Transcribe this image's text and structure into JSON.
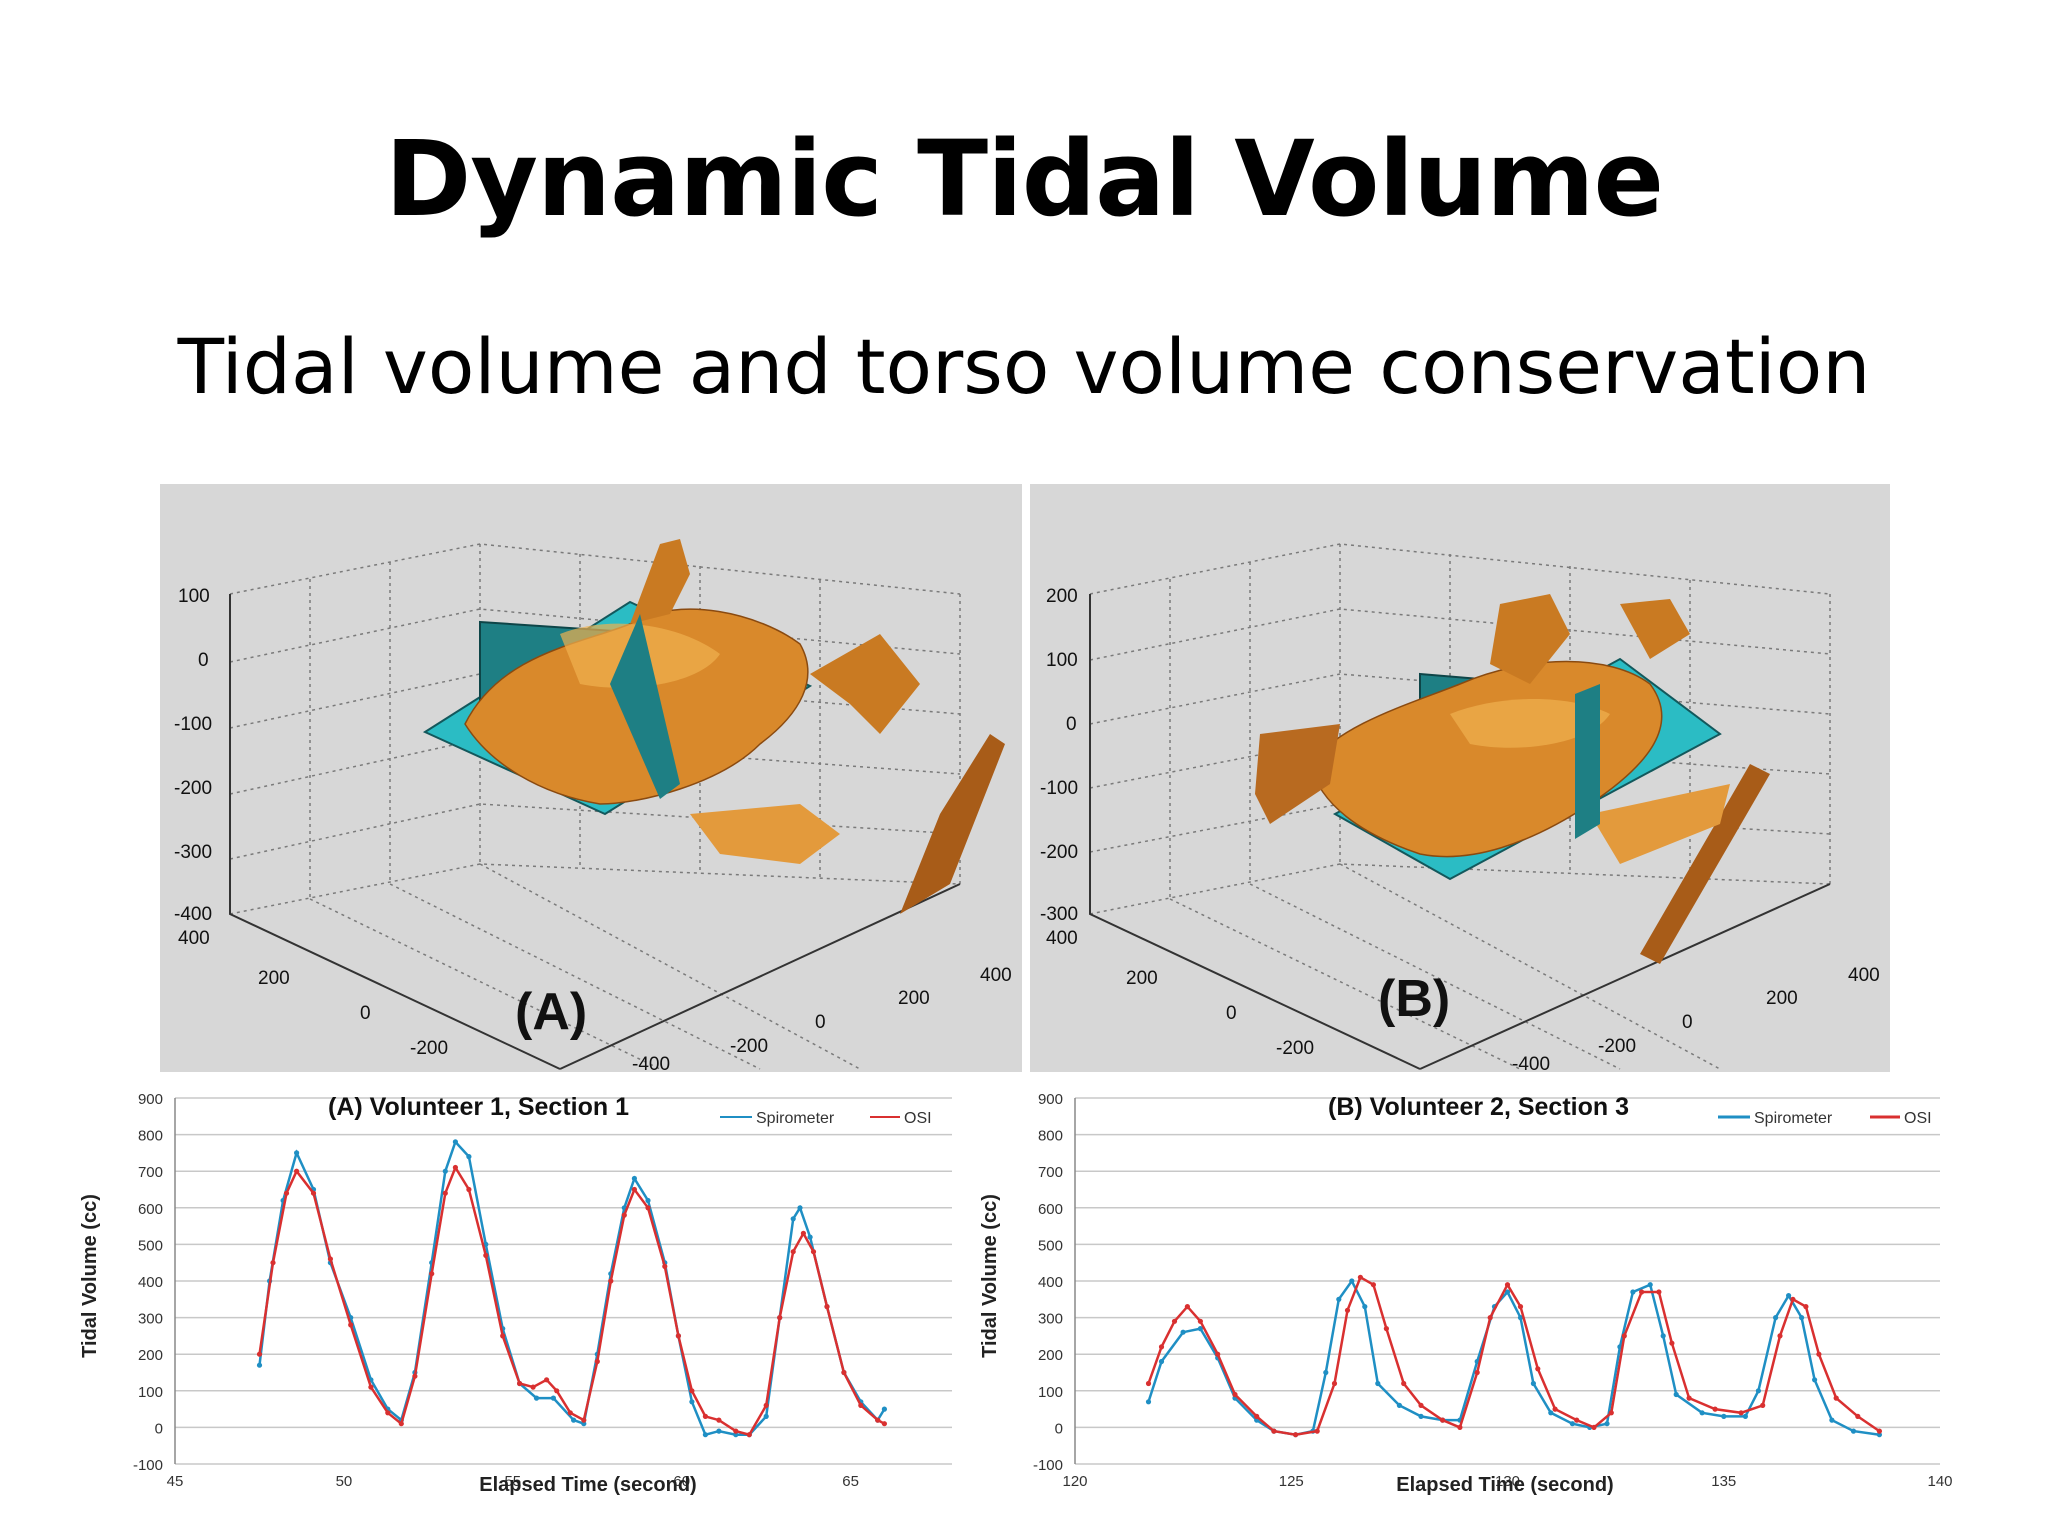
{
  "slide": {
    "title": "Dynamic Tidal Volume",
    "subtitle": "Tidal volume and torso volume conservation"
  },
  "panels_3d": [
    {
      "label": "(A)",
      "z_ticks": [
        "100",
        "0",
        "-100",
        "-200",
        "-300",
        "-400"
      ],
      "y_ticks": [
        "400",
        "200",
        "0",
        "-200"
      ],
      "x_ticks": [
        "-400",
        "-200",
        "0",
        "200",
        "400"
      ],
      "surface_color": "#d9892b",
      "plane_color": "#2bbcc4"
    },
    {
      "label": "(B)",
      "z_ticks": [
        "200",
        "100",
        "0",
        "-100",
        "-200",
        "-300"
      ],
      "y_ticks": [
        "400",
        "200",
        "0",
        "-200"
      ],
      "x_ticks": [
        "-400",
        "-200",
        "0",
        "200",
        "400"
      ],
      "surface_color": "#d9892b",
      "plane_color": "#2bbcc4"
    }
  ],
  "chart_data": [
    {
      "type": "line",
      "title": "(A)   Volunteer 1, Section 1",
      "xlabel": "Elapsed Time (second)",
      "ylabel": "Tidal Volume (cc)",
      "xlim": [
        45,
        68
      ],
      "ylim": [
        -100,
        900
      ],
      "x_ticks": [
        "45",
        "50",
        "55",
        "60",
        "65"
      ],
      "y_ticks": [
        "-100",
        "0",
        "100",
        "200",
        "300",
        "400",
        "500",
        "600",
        "700",
        "800",
        "900"
      ],
      "grid": true,
      "legend": "top-right",
      "series": [
        {
          "name": "Spirometer",
          "color": "#1f8fc4",
          "points": [
            [
              47.5,
              170
            ],
            [
              47.8,
              400
            ],
            [
              48.2,
              620
            ],
            [
              48.6,
              750
            ],
            [
              49.1,
              650
            ],
            [
              49.6,
              450
            ],
            [
              50.2,
              300
            ],
            [
              50.8,
              130
            ],
            [
              51.3,
              50
            ],
            [
              51.7,
              20
            ],
            [
              52.1,
              150
            ],
            [
              52.6,
              450
            ],
            [
              53.0,
              700
            ],
            [
              53.3,
              780
            ],
            [
              53.7,
              740
            ],
            [
              54.2,
              500
            ],
            [
              54.7,
              270
            ],
            [
              55.2,
              120
            ],
            [
              55.7,
              80
            ],
            [
              56.2,
              80
            ],
            [
              56.8,
              20
            ],
            [
              57.1,
              10
            ],
            [
              57.5,
              200
            ],
            [
              57.9,
              420
            ],
            [
              58.3,
              600
            ],
            [
              58.6,
              680
            ],
            [
              59.0,
              620
            ],
            [
              59.5,
              450
            ],
            [
              59.9,
              250
            ],
            [
              60.3,
              70
            ],
            [
              60.7,
              -20
            ],
            [
              61.1,
              -10
            ],
            [
              61.6,
              -20
            ],
            [
              62.0,
              -20
            ],
            [
              62.5,
              30
            ],
            [
              62.9,
              300
            ],
            [
              63.3,
              570
            ],
            [
              63.5,
              600
            ],
            [
              63.8,
              520
            ],
            [
              64.3,
              330
            ],
            [
              64.8,
              150
            ],
            [
              65.3,
              70
            ],
            [
              65.8,
              20
            ],
            [
              66.0,
              50
            ]
          ]
        },
        {
          "name": "OSI",
          "color": "#d93030",
          "points": [
            [
              47.5,
              200
            ],
            [
              47.9,
              450
            ],
            [
              48.3,
              640
            ],
            [
              48.6,
              700
            ],
            [
              49.1,
              640
            ],
            [
              49.6,
              460
            ],
            [
              50.2,
              280
            ],
            [
              50.8,
              110
            ],
            [
              51.3,
              40
            ],
            [
              51.7,
              10
            ],
            [
              52.1,
              140
            ],
            [
              52.6,
              420
            ],
            [
              53.0,
              640
            ],
            [
              53.3,
              710
            ],
            [
              53.7,
              650
            ],
            [
              54.2,
              470
            ],
            [
              54.7,
              250
            ],
            [
              55.2,
              120
            ],
            [
              55.6,
              110
            ],
            [
              56.0,
              130
            ],
            [
              56.3,
              100
            ],
            [
              56.7,
              40
            ],
            [
              57.1,
              20
            ],
            [
              57.5,
              180
            ],
            [
              57.9,
              400
            ],
            [
              58.3,
              580
            ],
            [
              58.6,
              650
            ],
            [
              59.0,
              600
            ],
            [
              59.5,
              440
            ],
            [
              59.9,
              250
            ],
            [
              60.3,
              100
            ],
            [
              60.7,
              30
            ],
            [
              61.1,
              20
            ],
            [
              61.6,
              -10
            ],
            [
              62.0,
              -20
            ],
            [
              62.5,
              60
            ],
            [
              62.9,
              300
            ],
            [
              63.3,
              480
            ],
            [
              63.6,
              530
            ],
            [
              63.9,
              480
            ],
            [
              64.3,
              330
            ],
            [
              64.8,
              150
            ],
            [
              65.3,
              60
            ],
            [
              65.8,
              20
            ],
            [
              66.0,
              10
            ]
          ]
        }
      ]
    },
    {
      "type": "line",
      "title": "(B)   Volunteer 2, Section 3",
      "xlabel": "Elapsed Time (second)",
      "ylabel": "Tidal Volume (cc)",
      "xlim": [
        120,
        140
      ],
      "ylim": [
        -100,
        900
      ],
      "x_ticks": [
        "120",
        "125",
        "130",
        "135",
        "140"
      ],
      "y_ticks": [
        "-100",
        "0",
        "100",
        "200",
        "300",
        "400",
        "500",
        "600",
        "700",
        "800",
        "900"
      ],
      "grid": true,
      "legend": "top-right",
      "series": [
        {
          "name": "Spirometer",
          "color": "#1f8fc4",
          "points": [
            [
              121.7,
              70
            ],
            [
              122.0,
              180
            ],
            [
              122.5,
              260
            ],
            [
              122.9,
              270
            ],
            [
              123.3,
              190
            ],
            [
              123.7,
              80
            ],
            [
              124.2,
              20
            ],
            [
              124.6,
              -10
            ],
            [
              125.1,
              -20
            ],
            [
              125.5,
              -10
            ],
            [
              125.8,
              150
            ],
            [
              126.1,
              350
            ],
            [
              126.4,
              400
            ],
            [
              126.7,
              330
            ],
            [
              127.0,
              120
            ],
            [
              127.5,
              60
            ],
            [
              128.0,
              30
            ],
            [
              128.5,
              20
            ],
            [
              128.9,
              20
            ],
            [
              129.3,
              180
            ],
            [
              129.7,
              330
            ],
            [
              130.0,
              370
            ],
            [
              130.3,
              300
            ],
            [
              130.6,
              120
            ],
            [
              131.0,
              40
            ],
            [
              131.5,
              10
            ],
            [
              131.9,
              0
            ],
            [
              132.3,
              10
            ],
            [
              132.6,
              220
            ],
            [
              132.9,
              370
            ],
            [
              133.3,
              390
            ],
            [
              133.6,
              250
            ],
            [
              133.9,
              90
            ],
            [
              134.5,
              40
            ],
            [
              135.0,
              30
            ],
            [
              135.5,
              30
            ],
            [
              135.8,
              100
            ],
            [
              136.2,
              300
            ],
            [
              136.5,
              360
            ],
            [
              136.8,
              300
            ],
            [
              137.1,
              130
            ],
            [
              137.5,
              20
            ],
            [
              138.0,
              -10
            ],
            [
              138.6,
              -20
            ]
          ]
        },
        {
          "name": "OSI",
          "color": "#d93030",
          "points": [
            [
              121.7,
              120
            ],
            [
              122.0,
              220
            ],
            [
              122.3,
              290
            ],
            [
              122.6,
              330
            ],
            [
              122.9,
              290
            ],
            [
              123.3,
              200
            ],
            [
              123.7,
              90
            ],
            [
              124.2,
              30
            ],
            [
              124.6,
              -10
            ],
            [
              125.1,
              -20
            ],
            [
              125.6,
              -10
            ],
            [
              126.0,
              120
            ],
            [
              126.3,
              320
            ],
            [
              126.6,
              410
            ],
            [
              126.9,
              390
            ],
            [
              127.2,
              270
            ],
            [
              127.6,
              120
            ],
            [
              128.0,
              60
            ],
            [
              128.5,
              20
            ],
            [
              128.9,
              0
            ],
            [
              129.3,
              150
            ],
            [
              129.6,
              300
            ],
            [
              130.0,
              390
            ],
            [
              130.3,
              330
            ],
            [
              130.7,
              160
            ],
            [
              131.1,
              50
            ],
            [
              131.6,
              20
            ],
            [
              132.0,
              0
            ],
            [
              132.4,
              40
            ],
            [
              132.7,
              250
            ],
            [
              133.1,
              370
            ],
            [
              133.5,
              370
            ],
            [
              133.8,
              230
            ],
            [
              134.2,
              80
            ],
            [
              134.8,
              50
            ],
            [
              135.4,
              40
            ],
            [
              135.9,
              60
            ],
            [
              136.3,
              250
            ],
            [
              136.6,
              350
            ],
            [
              136.9,
              330
            ],
            [
              137.2,
              200
            ],
            [
              137.6,
              80
            ],
            [
              138.1,
              30
            ],
            [
              138.6,
              -10
            ]
          ]
        }
      ]
    }
  ]
}
